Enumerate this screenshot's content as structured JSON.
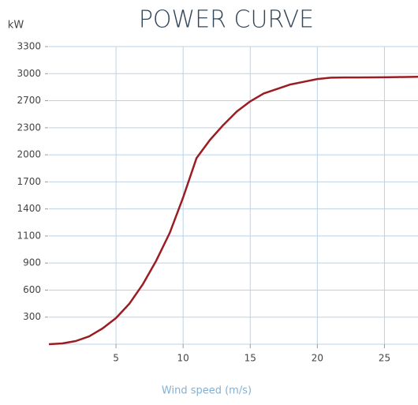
{
  "chart_data": {
    "type": "line",
    "title": "POWER CURVE",
    "y_label": "kW",
    "x_label": "Wind speed (m/s)",
    "x": [
      0,
      1,
      2,
      3,
      4,
      5,
      6,
      7,
      8,
      9,
      10,
      11,
      12,
      13,
      14,
      15,
      16,
      17,
      18,
      19,
      20,
      21,
      22,
      23,
      24,
      25,
      26,
      27.5
    ],
    "series": [
      {
        "color": "#9b1c22",
        "values": [
          0,
          9,
          35,
          87,
          175,
          290,
          450,
          665,
          918,
          1133,
          1527,
          1964,
          2165,
          2342,
          2540,
          2690,
          2780,
          2830,
          2880,
          2910,
          2940,
          2955,
          2957,
          2958,
          2959,
          2960,
          2962,
          2965
        ]
      }
    ],
    "xlim": [
      0,
      27.5
    ],
    "xticks": [
      5,
      10,
      15,
      20,
      25
    ],
    "ylim": [
      0,
      3300
    ],
    "yticks": [
      300,
      600,
      900,
      1100,
      1400,
      1700,
      2000,
      2300,
      2700,
      3000,
      3300
    ],
    "grid": true
  }
}
